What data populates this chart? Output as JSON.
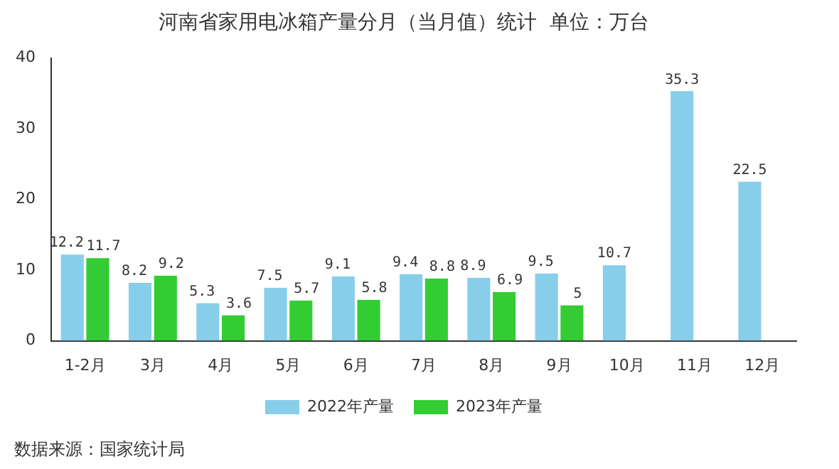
{
  "chart_data": {
    "type": "bar",
    "title": "河南省家用电冰箱产量分月（当月值）统计  单位：万台",
    "categories": [
      "1-2月",
      "3月",
      "4月",
      "5月",
      "6月",
      "7月",
      "8月",
      "9月",
      "10月",
      "11月",
      "12月"
    ],
    "series": [
      {
        "name": "2022年产量",
        "color": "#87ceeb",
        "values": [
          12.2,
          8.2,
          5.3,
          7.5,
          9.1,
          9.4,
          8.9,
          9.5,
          10.7,
          35.3,
          22.5
        ]
      },
      {
        "name": "2023年产量",
        "color": "#33cc33",
        "values": [
          11.7,
          9.2,
          3.6,
          5.7,
          5.8,
          8.8,
          6.9,
          5,
          null,
          null,
          null
        ]
      }
    ],
    "ylim": [
      0,
      40
    ],
    "yticks": [
      0,
      10,
      20,
      30,
      40
    ],
    "grid": false,
    "legend": "bottom",
    "data_labels": true,
    "annotations": [
      "数据来源：国家统计局"
    ]
  }
}
